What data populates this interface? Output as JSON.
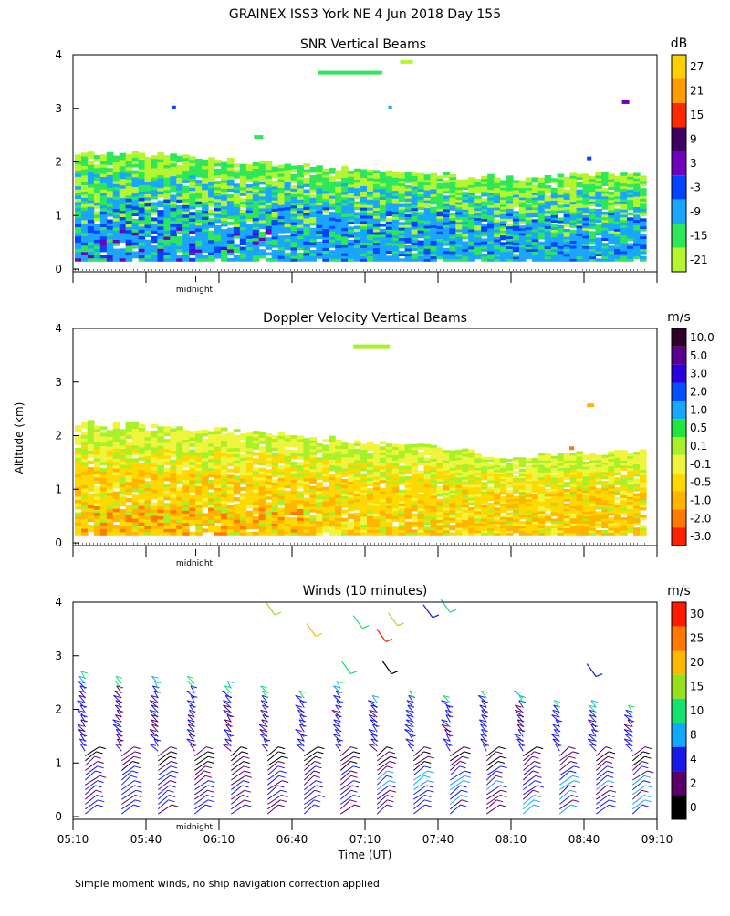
{
  "figure": {
    "title": "GRAINEX ISS3 York NE    4 Jun 2018 Day 155",
    "ylabel": "Altitude (km)",
    "xlabel": "Time (UT)",
    "footnote": "Simple moment winds, no ship navigation correction applied",
    "midnight_label": "midnight",
    "midnight_mark": "II"
  },
  "chart_data": [
    {
      "type": "heatmap",
      "title": "SNR Vertical Beams",
      "ylabel": "Altitude (km)",
      "ylim": [
        0,
        4
      ],
      "yticks": [
        "0",
        "1",
        "2",
        "3",
        "4"
      ],
      "xlim": [
        "05:10",
        "09:10"
      ],
      "colorbar_unit": "dB",
      "colorbar_ticks": [
        "27",
        "21",
        "15",
        "9",
        "3",
        "-3",
        "-9",
        "-15",
        "-21"
      ],
      "colorbar_colors": [
        "#ffd000",
        "#ff9a00",
        "#ff2a00",
        "#3c0060",
        "#7000c0",
        "#0044ff",
        "#1aa6ff",
        "#2ee65a",
        "#b4f530"
      ],
      "echo_top_km": [
        2.2,
        2.15,
        2.05,
        1.95,
        1.85,
        1.8,
        1.7,
        1.75,
        1.75
      ],
      "echo_bottom_km": 0.15
    },
    {
      "type": "heatmap",
      "title": "Doppler Velocity Vertical Beams",
      "ylabel": "Altitude (km)",
      "ylim": [
        0,
        4
      ],
      "yticks": [
        "0",
        "1",
        "2",
        "3",
        "4"
      ],
      "xlim": [
        "05:10",
        "09:10"
      ],
      "colorbar_unit": "m/s",
      "colorbar_ticks": [
        "10.0",
        "5.0",
        "3.0",
        "2.0",
        "1.0",
        "0.5",
        "0.1",
        "-0.1",
        "-0.5",
        "-1.0",
        "-2.0",
        "-3.0"
      ],
      "colorbar_colors": [
        "#30002a",
        "#5a0090",
        "#2a00e0",
        "#0050ff",
        "#16a8ff",
        "#22e640",
        "#a8f028",
        "#eef53c",
        "#ffd800",
        "#ffb400",
        "#ff7800",
        "#ff2000"
      ],
      "echo_top_km": [
        2.25,
        2.2,
        2.1,
        2.0,
        1.9,
        1.8,
        1.6,
        1.65,
        1.7
      ],
      "echo_bottom_km": 0.15
    },
    {
      "type": "scatter",
      "subtype": "wind_barbs",
      "title": "Winds (10 minutes)",
      "ylabel": "Altitude (km)",
      "xlabel": "Time (UT)",
      "ylim": [
        0,
        4
      ],
      "yticks": [
        "0",
        "1",
        "2",
        "3",
        "4"
      ],
      "x_ticklabels": [
        "05:10",
        "05:40",
        "06:10",
        "06:40",
        "07:10",
        "07:40",
        "08:10",
        "08:40",
        "09:10"
      ],
      "colorbar_unit": "m/s",
      "colorbar_ticks": [
        "30",
        "25",
        "20",
        "15",
        "10",
        "8",
        "4",
        "2",
        "0"
      ],
      "colorbar_colors": [
        "#ff1a00",
        "#ff7a00",
        "#ffb800",
        "#98e01a",
        "#16e070",
        "#12a8ff",
        "#1a1ae8",
        "#5a0068",
        "#000000"
      ],
      "profile_times_min": [
        5,
        20,
        35,
        50,
        65,
        80,
        95,
        110,
        125,
        140,
        155,
        170,
        185,
        200,
        215,
        230
      ],
      "profile_top_km": [
        2.6,
        2.5,
        2.55,
        2.5,
        2.4,
        2.35,
        2.3,
        2.45,
        2.2,
        2.3,
        2.2,
        2.3,
        2.25,
        2.1,
        2.05,
        2.0
      ]
    }
  ]
}
